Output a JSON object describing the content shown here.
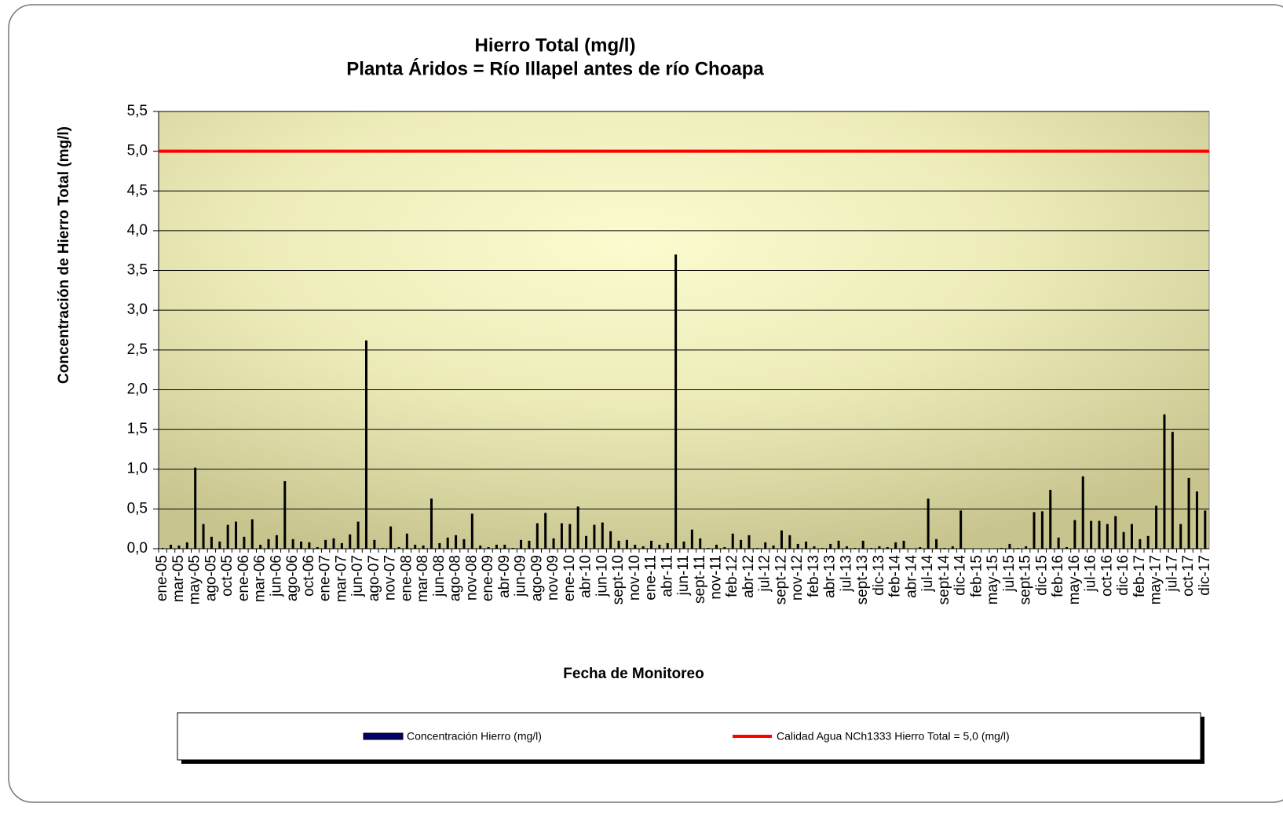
{
  "chart_data": {
    "type": "bar",
    "title": "Hierro Total (mg/l)",
    "subtitle": "Planta Áridos = Río Illapel antes de río Choapa",
    "x_label": "Fecha de Monitoreo",
    "y_label": "Concentración de Hierro Total (mg/l)",
    "categories": [
      "ene-05",
      null,
      "mar-05",
      null,
      "may-05",
      null,
      "ago-05",
      null,
      "oct-05",
      null,
      "ene-06",
      null,
      "mar-06",
      null,
      "jun-06",
      null,
      "ago-06",
      null,
      "oct-06",
      null,
      "ene-07",
      null,
      "mar-07",
      null,
      "jun-07",
      null,
      "ago-07",
      null,
      "nov-07",
      null,
      "ene-08",
      null,
      "mar-08",
      null,
      "jun-08",
      null,
      "ago-08",
      null,
      "nov-08",
      null,
      "ene-09",
      null,
      "abr-09",
      null,
      "jun-09",
      null,
      "ago-09",
      null,
      "nov-09",
      null,
      "ene-10",
      null,
      "abr-10",
      null,
      "jun-10",
      null,
      "sept-10",
      null,
      "nov-10",
      null,
      "ene-11",
      null,
      "abr-11",
      null,
      "jun-11",
      null,
      "sept-11",
      null,
      "nov-11",
      null,
      "feb-12",
      null,
      "abr-12",
      null,
      "jul-12",
      null,
      "sept-12",
      null,
      "nov-12",
      null,
      "feb-13",
      null,
      "abr-13",
      null,
      "jul-13",
      null,
      "sept-13",
      null,
      "dic-13",
      null,
      "feb-14",
      null,
      "abr-14",
      null,
      "jul-14",
      null,
      "sept-14",
      null,
      "dic-14",
      null,
      "feb-15",
      null,
      "may-15",
      null,
      "jul-15",
      null,
      "sept-15",
      null,
      "dic-15",
      null,
      "feb-16",
      null,
      "may-16",
      null,
      "jul-16",
      null,
      "oct-16",
      null,
      "dic-16",
      null,
      "feb-17",
      null,
      "may-17",
      null,
      "jul-17",
      null,
      "oct-17",
      null,
      "dic-17"
    ],
    "series": [
      {
        "name": "Concentración Hierro (mg/l)",
        "color": "#000000",
        "legend_color": "#000066",
        "values": [
          0.01,
          0.05,
          0.04,
          0.08,
          1.02,
          0.31,
          0.15,
          0.09,
          0.3,
          0.34,
          0.15,
          0.37,
          0.05,
          0.12,
          0.17,
          0.85,
          0.12,
          0.09,
          0.08,
          0.02,
          0.11,
          0.13,
          0.07,
          0.18,
          0.34,
          2.62,
          0.11,
          0.01,
          0.28,
          0.02,
          0.19,
          0.05,
          0.04,
          0.63,
          0.07,
          0.14,
          0.17,
          0.12,
          0.44,
          0.04,
          0.02,
          0.05,
          0.05,
          0.01,
          0.11,
          0.1,
          0.32,
          0.45,
          0.13,
          0.32,
          0.31,
          0.53,
          0.16,
          0.3,
          0.33,
          0.22,
          0.1,
          0.11,
          0.05,
          0.03,
          0.1,
          0.05,
          0.07,
          3.7,
          0.09,
          0.24,
          0.13,
          0.01,
          0.05,
          0.02,
          0.19,
          0.11,
          0.17,
          0.01,
          0.08,
          0.04,
          0.23,
          0.17,
          0.06,
          0.09,
          0.03,
          0.01,
          0.06,
          0.1,
          0.03,
          0.01,
          0.1,
          0.01,
          0.03,
          0.02,
          0.08,
          0.1,
          0,
          0.02,
          0.63,
          0.12,
          0.01,
          0.03,
          0.48,
          0,
          0,
          0,
          0,
          0.01,
          0.06,
          0.01,
          0.03,
          0.46,
          0.47,
          0.74,
          0.14,
          0.02,
          0.36,
          0.91,
          0.35,
          0.35,
          0.31,
          0.41,
          0.21,
          0.31,
          0.12,
          0.16,
          0.54,
          1.69,
          1.47,
          0.31,
          0.89,
          0.72,
          0.48
        ]
      }
    ],
    "reference_line": {
      "name": "Calidad Agua NCh1333 Hierro Total = 5,0 (mg/l)",
      "value": 5,
      "color": "#ff0000"
    },
    "ylim": [
      0,
      5.5
    ],
    "yticks": [
      {
        "value": 0,
        "label": "0,0"
      },
      {
        "value": 0.5,
        "label": "0,5"
      },
      {
        "value": 1,
        "label": "1,0"
      },
      {
        "value": 1.5,
        "label": "1,5"
      },
      {
        "value": 2,
        "label": "2,0"
      },
      {
        "value": 2.5,
        "label": "2,5"
      },
      {
        "value": 3,
        "label": "3,0"
      },
      {
        "value": 3.5,
        "label": "3,5"
      },
      {
        "value": 4,
        "label": "4,0"
      },
      {
        "value": 4.5,
        "label": "4,5"
      },
      {
        "value": 5,
        "label": "5,0"
      },
      {
        "value": 5.5,
        "label": "5,5"
      }
    ],
    "grid": true,
    "legend": "bottom"
  }
}
